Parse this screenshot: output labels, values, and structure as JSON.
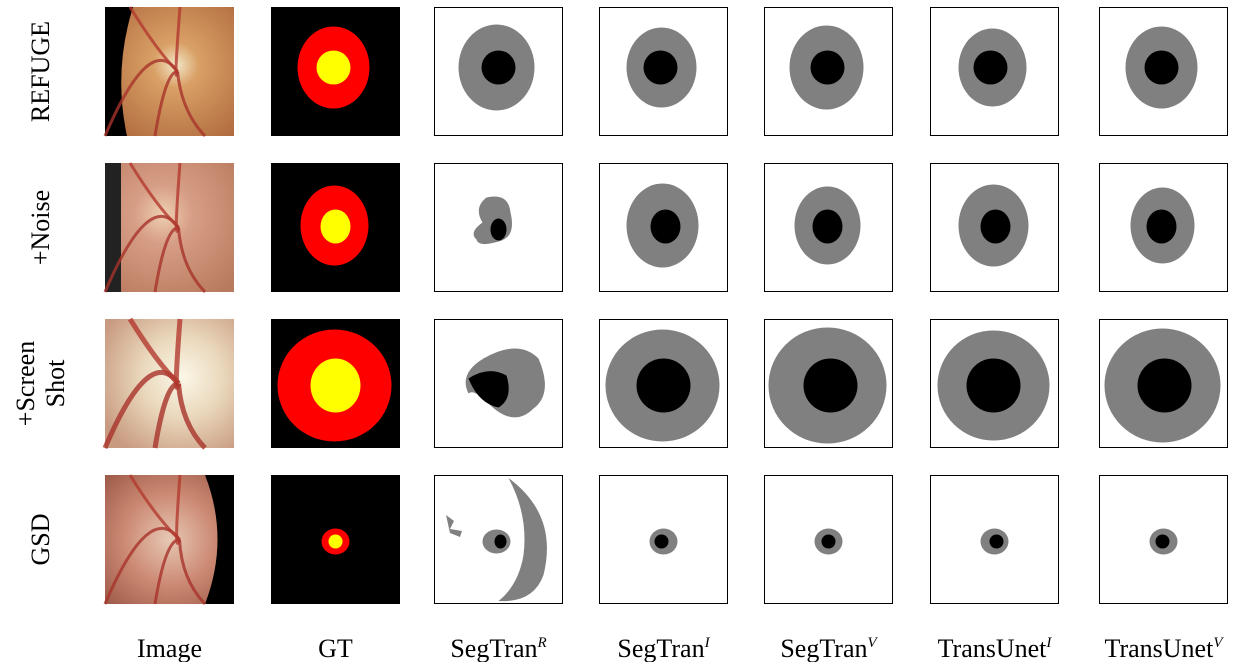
{
  "figure": {
    "row_labels": [
      [
        "REFUGE"
      ],
      [
        "+Noise"
      ],
      [
        "+Screen",
        "Shot"
      ],
      [
        "GSD"
      ]
    ],
    "column_labels": [
      {
        "text": "Image"
      },
      {
        "text": "GT"
      },
      {
        "text": "SegTran",
        "sup": "R"
      },
      {
        "text": "SegTran",
        "sup": "I"
      },
      {
        "text": "SegTran",
        "sup": "V"
      },
      {
        "text": "TransUnet",
        "sup": "I"
      },
      {
        "text": "TransUnet",
        "sup": "V"
      }
    ]
  }
}
